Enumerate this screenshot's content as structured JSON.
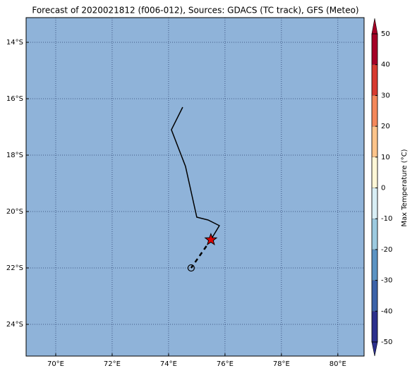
{
  "chart_data": {
    "type": "map",
    "title": "Forecast of 2020021812 (f006-012), Sources: GDACS (TC track), GFS (Meteo)",
    "xlim": [
      68.95,
      80.93
    ],
    "ylim": [
      -25.125,
      -13.125
    ],
    "xticks": [
      {
        "value": 70,
        "label": "70°E"
      },
      {
        "value": 72,
        "label": "72°E"
      },
      {
        "value": 74,
        "label": "74°E"
      },
      {
        "value": 76,
        "label": "76°E"
      },
      {
        "value": 78,
        "label": "78°E"
      },
      {
        "value": 80,
        "label": "80°E"
      }
    ],
    "yticks": [
      {
        "value": -14,
        "label": "14°S"
      },
      {
        "value": -16,
        "label": "16°S"
      },
      {
        "value": -18,
        "label": "18°S"
      },
      {
        "value": -20,
        "label": "20°S"
      },
      {
        "value": -22,
        "label": "22°S"
      },
      {
        "value": -24,
        "label": "24°S"
      }
    ],
    "grid": true,
    "map_color": "#8fb3d9",
    "track": {
      "lon": [
        74.5,
        74.1,
        74.6,
        75.0,
        75.4,
        75.8,
        75.5
      ],
      "lat": [
        -16.3,
        -17.1,
        -18.4,
        -20.2,
        -20.3,
        -20.5,
        -21.0
      ],
      "color": "#000000"
    },
    "forecast_track": {
      "lon": [
        75.5,
        74.8
      ],
      "lat": [
        -21.0,
        -22.0
      ],
      "color": "#000000"
    },
    "colorbar": {
      "label": "Max Temperature (°C)",
      "ticks": [
        -50,
        -40,
        -30,
        -20,
        -10,
        0,
        10,
        20,
        30,
        40,
        50
      ],
      "colors": [
        "#2b2f8c",
        "#3b62a8",
        "#5b93c3",
        "#9ccae0",
        "#d8eef5",
        "#fff7d6",
        "#fdc48a",
        "#f4875a",
        "#d73a2f",
        "#a50026"
      ]
    }
  }
}
